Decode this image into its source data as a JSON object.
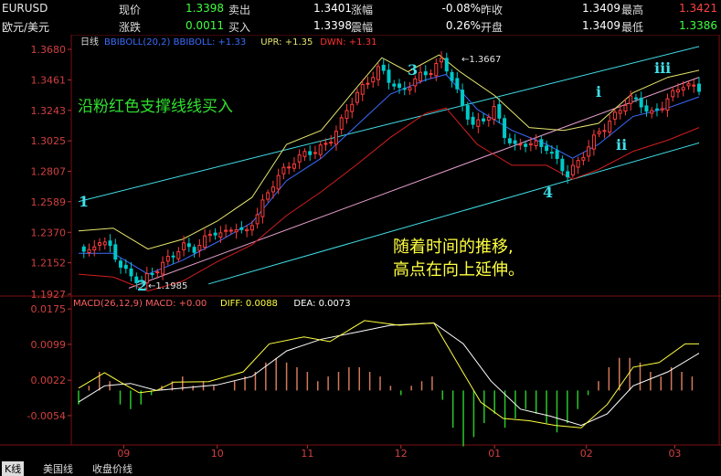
{
  "quote_rows": [
    {
      "symbol": "EURUSD",
      "cells": [
        {
          "label": "现价",
          "value": "1.3398"
        },
        {
          "label": "卖出",
          "value": "1.3401"
        },
        {
          "label": "涨幅",
          "value": "-0.08%"
        },
        {
          "label": "昨收",
          "value": "1.3409"
        },
        {
          "label": "最高",
          "value": "1.3421"
        }
      ]
    },
    {
      "symbol": "欧元/美元",
      "cells": [
        {
          "label": "涨跌",
          "value": "0.0011"
        },
        {
          "label": "买入",
          "value": "1.3398"
        },
        {
          "label": "震幅",
          "value": "0.26%"
        },
        {
          "label": "开盘",
          "value": "1.3409"
        },
        {
          "label": "最低",
          "value": "1.3386"
        }
      ]
    }
  ],
  "colors": {
    "up": "#ff3c3c",
    "down": "#00c8c8",
    "price_up": "#40ff40",
    "price_down": "#ff4040",
    "boll_mid": "#3a6cff",
    "boll_upper": "#e6e66e",
    "boll_lower": "#d21e1e",
    "channel": "#40e0e8",
    "support": "#e8a0d0",
    "macd_pos": "#d2785a",
    "macd_neg": "#28c828",
    "diff": "#ffff40",
    "dea": "#ffffff"
  },
  "main_panel": {
    "indicator": "日线",
    "legend": [
      {
        "text": "BBIBOLL(20,2) BBIBOLL: +1.33",
        "color": "#3a6cff"
      },
      {
        "text": "UPR: +1.35",
        "color": "#e6e66e"
      },
      {
        "text": "DWN: +1.31",
        "color": "#ff3030"
      }
    ]
  },
  "sub_panel": {
    "legend": [
      {
        "text": "MACD(26,12,9) MACD: +0.00",
        "color": "#ff6060"
      },
      {
        "text": "DIFF: 0.0088",
        "color": "#ffff40"
      },
      {
        "text": "DEA: 0.0073",
        "color": "#ffffff"
      }
    ]
  },
  "annotations": {
    "note_green": "沿粉红色支撑线线买入",
    "note_yellow_1": "随着时间的推移,",
    "note_yellow_2": "高点在向上延伸。",
    "wave_1": "1",
    "wave_2": "2",
    "wave_3": "3",
    "wave_4": "4",
    "wave_i": "i",
    "wave_ii": "ii",
    "wave_iii": "iii",
    "low_value": "1.1985",
    "high_value": "1.3667"
  },
  "bottom_tabs": [
    {
      "label": "K线",
      "active": true
    },
    {
      "label": "美国线",
      "active": false
    },
    {
      "label": "收盘价线",
      "active": false
    }
  ],
  "chart_data": [
    {
      "type": "candlestick",
      "title": "EURUSD 日线",
      "x_tick_labels": [
        "09",
        "10",
        "11",
        "12",
        "01",
        "02",
        "03"
      ],
      "y_tick_labels": [
        "1.3680",
        "1.3461",
        "1.3243",
        "1.3025",
        "1.2807",
        "1.2589",
        "1.2370",
        "1.2152",
        "1.1927"
      ],
      "ylim": [
        1.1927,
        1.368
      ],
      "close_path": [
        [
          0,
          1.225
        ],
        [
          6,
          1.222
        ],
        [
          12,
          1.232
        ],
        [
          18,
          1.226
        ],
        [
          24,
          1.214
        ],
        [
          30,
          1.205
        ],
        [
          36,
          1.202
        ],
        [
          42,
          1.207
        ],
        [
          48,
          1.214
        ],
        [
          54,
          1.22
        ],
        [
          60,
          1.228
        ],
        [
          66,
          1.224
        ],
        [
          72,
          1.231
        ],
        [
          78,
          1.238
        ],
        [
          84,
          1.235
        ],
        [
          90,
          1.242
        ],
        [
          96,
          1.235
        ],
        [
          102,
          1.248
        ],
        [
          108,
          1.262
        ],
        [
          114,
          1.276
        ],
        [
          120,
          1.283
        ],
        [
          126,
          1.29
        ],
        [
          132,
          1.294
        ],
        [
          138,
          1.296
        ],
        [
          144,
          1.301
        ],
        [
          150,
          1.312
        ],
        [
          156,
          1.328
        ],
        [
          162,
          1.338
        ],
        [
          168,
          1.347
        ],
        [
          174,
          1.355
        ],
        [
          180,
          1.345
        ],
        [
          186,
          1.337
        ],
        [
          192,
          1.344
        ],
        [
          198,
          1.35
        ],
        [
          204,
          1.353
        ],
        [
          210,
          1.361
        ],
        [
          216,
          1.345
        ],
        [
          222,
          1.326
        ],
        [
          228,
          1.313
        ],
        [
          234,
          1.318
        ],
        [
          240,
          1.326
        ],
        [
          246,
          1.306
        ],
        [
          252,
          1.298
        ],
        [
          258,
          1.301
        ],
        [
          264,
          1.3
        ],
        [
          270,
          1.298
        ],
        [
          276,
          1.288
        ],
        [
          282,
          1.278
        ],
        [
          288,
          1.287
        ],
        [
          294,
          1.298
        ],
        [
          300,
          1.309
        ],
        [
          306,
          1.315
        ],
        [
          312,
          1.325
        ],
        [
          318,
          1.333
        ],
        [
          324,
          1.33
        ],
        [
          330,
          1.321
        ],
        [
          336,
          1.327
        ],
        [
          342,
          1.335
        ],
        [
          348,
          1.343
        ],
        [
          354,
          1.341
        ],
        [
          358,
          1.34
        ]
      ],
      "bb_mid": [
        [
          0,
          1.222
        ],
        [
          20,
          1.222
        ],
        [
          40,
          1.207
        ],
        [
          60,
          1.217
        ],
        [
          80,
          1.23
        ],
        [
          100,
          1.244
        ],
        [
          120,
          1.274
        ],
        [
          140,
          1.29
        ],
        [
          160,
          1.313
        ],
        [
          180,
          1.336
        ],
        [
          200,
          1.346
        ],
        [
          212,
          1.35
        ],
        [
          230,
          1.325
        ],
        [
          250,
          1.31
        ],
        [
          270,
          1.3
        ],
        [
          285,
          1.29
        ],
        [
          300,
          1.3
        ],
        [
          320,
          1.32
        ],
        [
          340,
          1.326
        ],
        [
          358,
          1.334
        ]
      ],
      "bb_upper": [
        [
          0,
          1.238
        ],
        [
          20,
          1.24
        ],
        [
          40,
          1.225
        ],
        [
          60,
          1.232
        ],
        [
          80,
          1.245
        ],
        [
          100,
          1.262
        ],
        [
          120,
          1.3
        ],
        [
          140,
          1.31
        ],
        [
          160,
          1.34
        ],
        [
          175,
          1.362
        ],
        [
          190,
          1.352
        ],
        [
          208,
          1.364
        ],
        [
          220,
          1.352
        ],
        [
          240,
          1.335
        ],
        [
          260,
          1.312
        ],
        [
          280,
          1.31
        ],
        [
          300,
          1.315
        ],
        [
          320,
          1.337
        ],
        [
          340,
          1.348
        ],
        [
          358,
          1.353
        ]
      ],
      "bb_lower": [
        [
          0,
          1.207
        ],
        [
          20,
          1.205
        ],
        [
          40,
          1.195
        ],
        [
          60,
          1.202
        ],
        [
          80,
          1.216
        ],
        [
          100,
          1.228
        ],
        [
          120,
          1.249
        ],
        [
          140,
          1.266
        ],
        [
          160,
          1.285
        ],
        [
          180,
          1.305
        ],
        [
          200,
          1.322
        ],
        [
          212,
          1.326
        ],
        [
          230,
          1.3
        ],
        [
          250,
          1.285
        ],
        [
          270,
          1.285
        ],
        [
          285,
          1.275
        ],
        [
          300,
          1.282
        ],
        [
          320,
          1.295
        ],
        [
          340,
          1.303
        ],
        [
          358,
          1.312
        ]
      ],
      "channel_upper": [
        [
          0,
          1.259
        ],
        [
          358,
          1.37
        ]
      ],
      "support_line": [
        [
          29,
          1.197
        ],
        [
          358,
          1.348
        ]
      ],
      "channel_lower": [
        [
          75,
          1.2
        ],
        [
          358,
          1.301
        ]
      ]
    },
    {
      "type": "bar",
      "title": "MACD(26,12,9)",
      "y_tick_labels": [
        "0.0175",
        "0.0099",
        "0.0022",
        "-0.0054"
      ],
      "ylim": [
        -0.0115,
        0.0195
      ],
      "macd_hist": [
        [
          0,
          -0.003
        ],
        [
          6,
          0.001
        ],
        [
          12,
          0.004
        ],
        [
          18,
          0.002
        ],
        [
          24,
          -0.003
        ],
        [
          30,
          -0.004
        ],
        [
          36,
          -0.003
        ],
        [
          42,
          -0.001
        ],
        [
          48,
          0.001
        ],
        [
          54,
          0.002
        ],
        [
          60,
          0.003
        ],
        [
          66,
          0.001
        ],
        [
          72,
          0.002
        ],
        [
          78,
          0.001
        ],
        [
          84,
          0.0
        ],
        [
          90,
          0.002
        ],
        [
          96,
          0.003
        ],
        [
          102,
          0.004
        ],
        [
          108,
          0.006
        ],
        [
          114,
          0.007
        ],
        [
          120,
          0.006
        ],
        [
          126,
          0.005
        ],
        [
          132,
          0.004
        ],
        [
          138,
          0.002
        ],
        [
          144,
          0.003
        ],
        [
          150,
          0.004
        ],
        [
          156,
          0.005
        ],
        [
          162,
          0.005
        ],
        [
          168,
          0.004
        ],
        [
          174,
          0.003
        ],
        [
          180,
          0.001
        ],
        [
          186,
          -0.001
        ],
        [
          192,
          0.001
        ],
        [
          198,
          0.002
        ],
        [
          204,
          0.003
        ],
        [
          210,
          -0.002
        ],
        [
          216,
          -0.008
        ],
        [
          222,
          -0.012
        ],
        [
          228,
          -0.01
        ],
        [
          234,
          -0.007
        ],
        [
          240,
          -0.005
        ],
        [
          246,
          -0.008
        ],
        [
          252,
          -0.006
        ],
        [
          258,
          -0.004
        ],
        [
          264,
          -0.005
        ],
        [
          270,
          -0.007
        ],
        [
          276,
          -0.009
        ],
        [
          282,
          -0.007
        ],
        [
          288,
          -0.004
        ],
        [
          294,
          -0.001
        ],
        [
          300,
          0.002
        ],
        [
          306,
          0.005
        ],
        [
          312,
          0.007
        ],
        [
          318,
          0.007
        ],
        [
          324,
          0.006
        ],
        [
          330,
          0.004
        ],
        [
          336,
          0.003
        ],
        [
          342,
          0.005
        ],
        [
          348,
          0.004
        ],
        [
          354,
          0.003
        ]
      ],
      "diff": [
        [
          0,
          0.0005
        ],
        [
          15,
          0.0038
        ],
        [
          25,
          0.0016
        ],
        [
          35,
          -0.0005
        ],
        [
          45,
          0.0
        ],
        [
          55,
          0.0018
        ],
        [
          75,
          0.0019
        ],
        [
          95,
          0.004
        ],
        [
          110,
          0.01
        ],
        [
          130,
          0.0115
        ],
        [
          145,
          0.0105
        ],
        [
          165,
          0.015
        ],
        [
          185,
          0.014
        ],
        [
          205,
          0.0145
        ],
        [
          220,
          0.005
        ],
        [
          232,
          -0.0025
        ],
        [
          245,
          -0.006
        ],
        [
          260,
          -0.0065
        ],
        [
          275,
          -0.0075
        ],
        [
          290,
          -0.008
        ],
        [
          305,
          -0.003
        ],
        [
          320,
          0.005
        ],
        [
          335,
          0.006
        ],
        [
          350,
          0.01
        ],
        [
          358,
          0.01
        ]
      ],
      "dea": [
        [
          0,
          -0.0025
        ],
        [
          15,
          0.001
        ],
        [
          30,
          0.0015
        ],
        [
          45,
          0.0
        ],
        [
          60,
          0.0005
        ],
        [
          80,
          0.0012
        ],
        [
          100,
          0.003
        ],
        [
          120,
          0.0085
        ],
        [
          140,
          0.011
        ],
        [
          160,
          0.0125
        ],
        [
          180,
          0.014
        ],
        [
          205,
          0.0145
        ],
        [
          222,
          0.01
        ],
        [
          238,
          0.002
        ],
        [
          255,
          -0.004
        ],
        [
          272,
          -0.0055
        ],
        [
          290,
          -0.0075
        ],
        [
          305,
          -0.005
        ],
        [
          320,
          0.001
        ],
        [
          340,
          0.004
        ],
        [
          358,
          0.008
        ]
      ]
    }
  ]
}
